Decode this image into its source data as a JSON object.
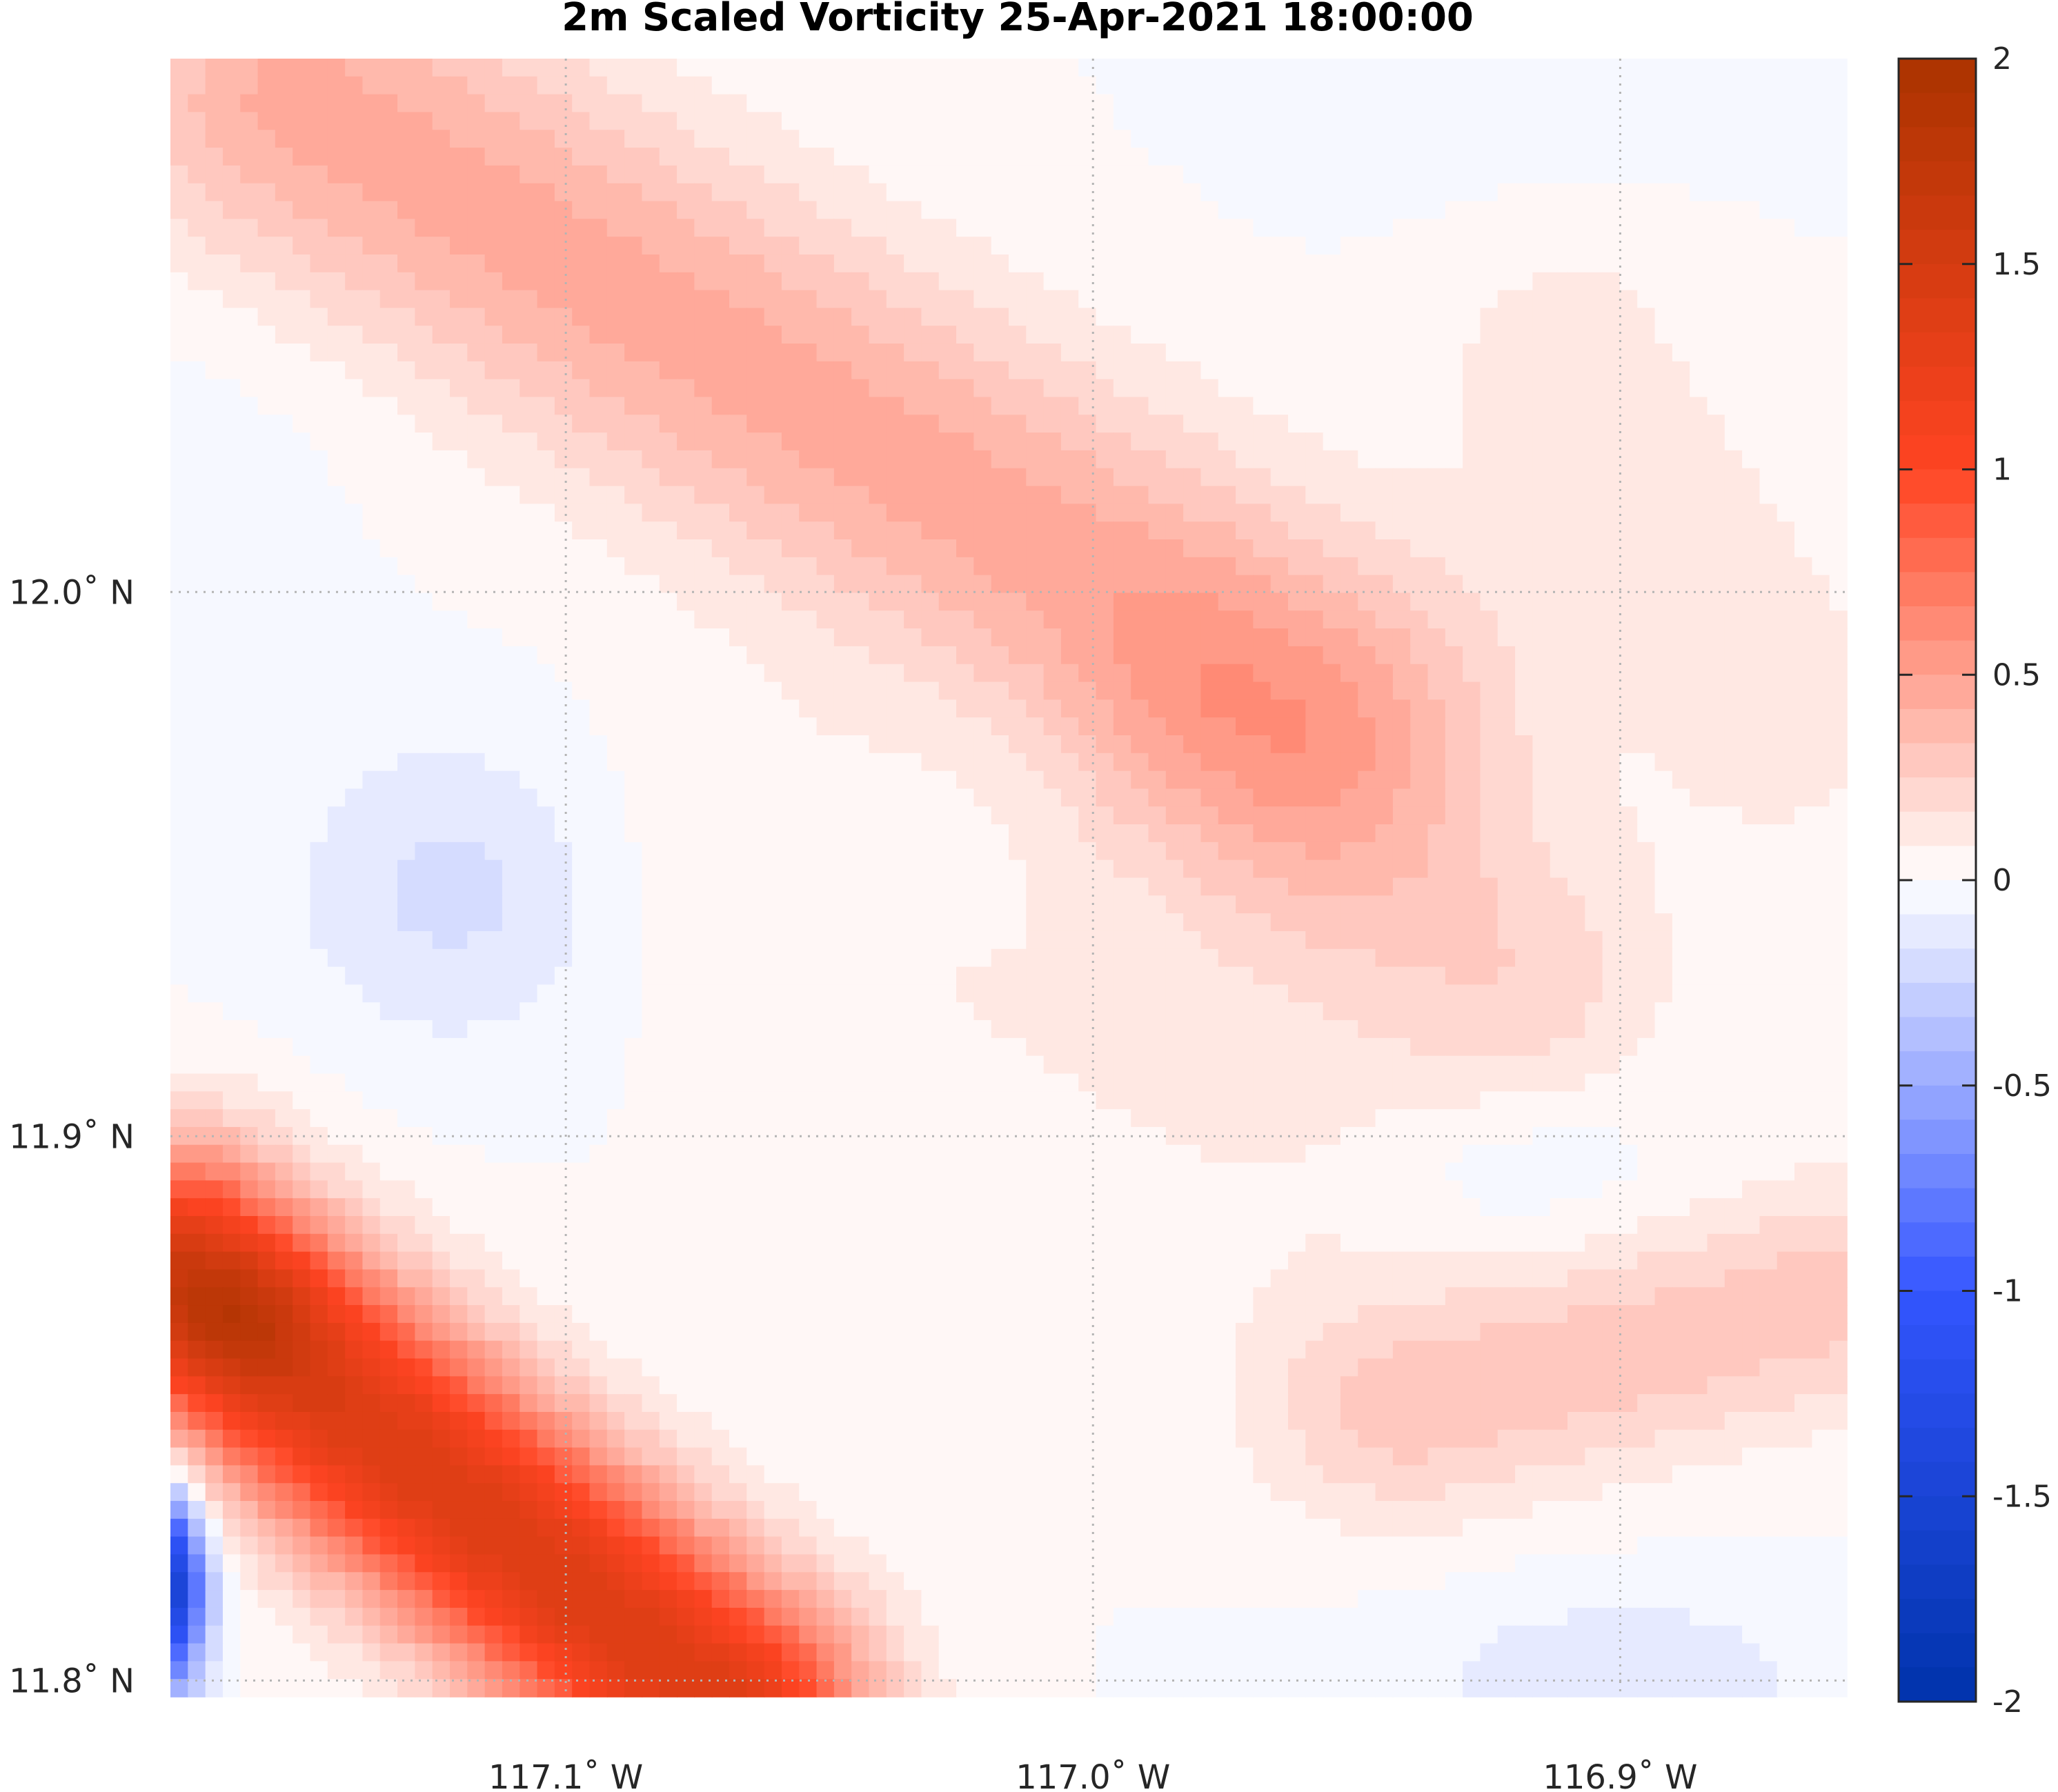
{
  "chart_data": {
    "type": "heatmap",
    "title": "2m Scaled Vorticity  25-Apr-2021 18:00:00",
    "xlabel": "",
    "ylabel": "",
    "x_axis": {
      "range": [
        -117.175,
        -116.857
      ],
      "ticks": [
        {
          "value": -117.1,
          "label": "117.1˚ W"
        },
        {
          "value": -117.0,
          "label": "117.0˚ W"
        },
        {
          "value": -116.9,
          "label": "116.9˚ W"
        }
      ]
    },
    "y_axis": {
      "range": [
        11.797,
        12.098
      ],
      "ticks": [
        {
          "value": 12.0,
          "label": "12.0˚ N"
        },
        {
          "value": 11.9,
          "label": "11.9˚ N"
        },
        {
          "value": 11.8,
          "label": "11.8˚ N"
        }
      ]
    },
    "grid": true,
    "grid_style": "dotted",
    "colorbar": {
      "placement": "right",
      "min": -2,
      "max": 2,
      "levels": 48,
      "colors": [
        "#0033aa",
        "#3355ff",
        "#ffffff",
        "#ff4422",
        "#aa3300"
      ],
      "ticks": [
        {
          "value": 2,
          "label": "2"
        },
        {
          "value": 1.5,
          "label": "1.5"
        },
        {
          "value": 1,
          "label": "1"
        },
        {
          "value": 0.5,
          "label": "0.5"
        },
        {
          "value": 0,
          "label": "0"
        },
        {
          "value": -0.5,
          "label": "-0.5"
        },
        {
          "value": -1,
          "label": "-1"
        },
        {
          "value": -1.5,
          "label": "-1.5"
        },
        {
          "value": -2,
          "label": "-2"
        }
      ]
    },
    "features": [
      {
        "kind": "ridge",
        "lon1": -117.15,
        "lat1": 12.09,
        "lon2": -116.96,
        "lat2": 11.98,
        "value": 0.45,
        "sigma_lon": 0.026,
        "sigma_lat": 0.022
      },
      {
        "kind": "ridge",
        "lon1": -117.06,
        "lat1": 11.95,
        "lon2": -116.96,
        "lat2": 11.9,
        "value": 0.09,
        "sigma_lon": 0.03,
        "sigma_lat": 0.025
      },
      {
        "kind": "ridge",
        "lon1": -116.94,
        "lat1": 11.85,
        "lon2": -116.86,
        "lat2": 11.87,
        "value": 0.3,
        "sigma_lon": 0.02,
        "sigma_lat": 0.015
      },
      {
        "kind": "ridge",
        "lon1": -116.91,
        "lat1": 12.04,
        "lon2": -116.87,
        "lat2": 11.98,
        "value": 0.14,
        "sigma_lon": 0.018,
        "sigma_lat": 0.02
      },
      {
        "kind": "ridge",
        "lon1": -116.98,
        "lat1": 11.97,
        "lon2": -116.92,
        "lat2": 11.93,
        "value": 0.22,
        "sigma_lon": 0.02,
        "sigma_lat": 0.02
      },
      {
        "kind": "blob",
        "lon": -117.12,
        "lat": 11.945,
        "value": -0.2,
        "sigma_lon": 0.022,
        "sigma_lat": 0.02
      },
      {
        "kind": "blob",
        "lon": -117.0,
        "lat": 11.96,
        "value": -0.06,
        "sigma_lon": 0.03,
        "sigma_lat": 0.018
      },
      {
        "kind": "blob",
        "lon": -116.92,
        "lat": 11.895,
        "value": -0.12,
        "sigma_lon": 0.02,
        "sigma_lat": 0.012
      },
      {
        "kind": "blob",
        "lon": -116.9,
        "lat": 11.8,
        "value": -0.14,
        "sigma_lon": 0.03,
        "sigma_lat": 0.013
      },
      {
        "kind": "blob",
        "lon": -116.92,
        "lat": 12.09,
        "value": -0.05,
        "sigma_lon": 0.03,
        "sigma_lat": 0.015
      },
      {
        "kind": "blob",
        "lon": -117.17,
        "lat": 12.03,
        "value": -0.04,
        "sigma_lon": 0.025,
        "sigma_lat": 0.02
      },
      {
        "kind": "ridge",
        "lon1": -117.175,
        "lat1": 11.875,
        "lon2": -117.07,
        "lat2": 11.795,
        "value": 1.4,
        "sigma_lon": 0.018,
        "sigma_lat": 0.016
      },
      {
        "kind": "blob",
        "lon": -117.163,
        "lat": 11.868,
        "value": 0.45,
        "sigma_lon": 0.012,
        "sigma_lat": 0.01
      },
      {
        "kind": "blob",
        "lon": -117.178,
        "lat": 11.817,
        "value": -2.0,
        "sigma_lon": 0.006,
        "sigma_lat": 0.012
      }
    ]
  }
}
